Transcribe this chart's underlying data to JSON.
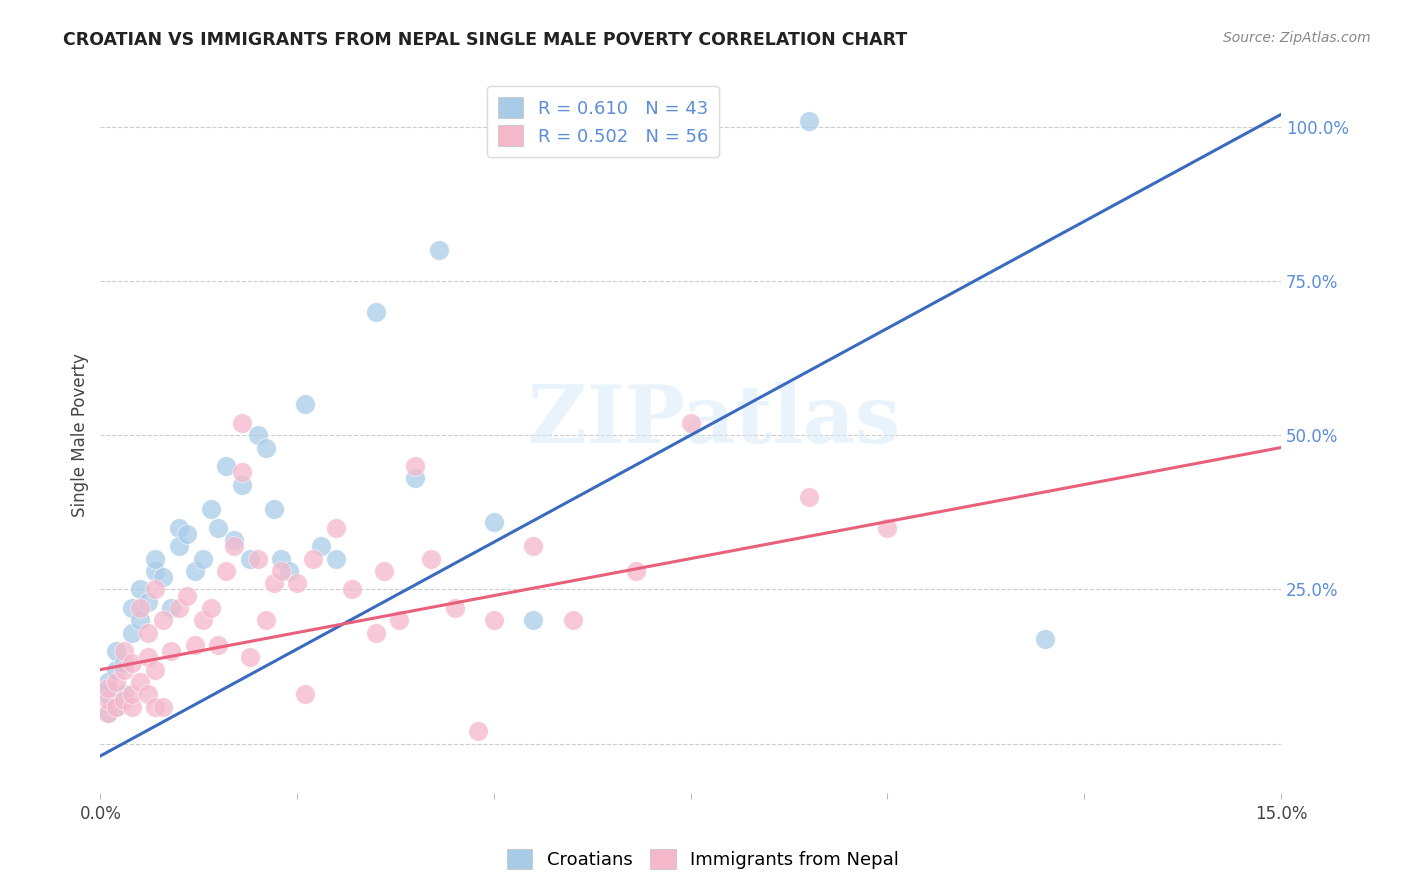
{
  "title": "CROATIAN VS IMMIGRANTS FROM NEPAL SINGLE MALE POVERTY CORRELATION CHART",
  "source": "Source: ZipAtlas.com",
  "ylabel": "Single Male Poverty",
  "legend_r1": "R = 0.610",
  "legend_n1": "N = 43",
  "legend_r2": "R = 0.502",
  "legend_n2": "N = 56",
  "legend_label1": "Croatians",
  "legend_label2": "Immigrants from Nepal",
  "watermark": "ZIPatlas",
  "color_blue": "#a8cce8",
  "color_pink": "#f5b8cb",
  "line_color_blue": "#3a6bbf",
  "line_color_pink": "#e8607a",
  "label_color_blue": "#5b8dd9",
  "xmin": 0.0,
  "xmax": 0.15,
  "ymin": -0.08,
  "ymax": 1.08,
  "blue_line_x0": 0.0,
  "blue_line_y0": -0.02,
  "blue_line_x1": 0.15,
  "blue_line_y1": 1.02,
  "pink_line_x0": 0.0,
  "pink_line_y0": 0.12,
  "pink_line_x1": 0.15,
  "pink_line_y1": 0.48,
  "blue_x": [
    0.001,
    0.001,
    0.001,
    0.002,
    0.002,
    0.002,
    0.003,
    0.003,
    0.004,
    0.004,
    0.005,
    0.005,
    0.006,
    0.007,
    0.007,
    0.008,
    0.009,
    0.01,
    0.01,
    0.011,
    0.012,
    0.013,
    0.014,
    0.015,
    0.016,
    0.017,
    0.018,
    0.019,
    0.02,
    0.021,
    0.022,
    0.023,
    0.024,
    0.026,
    0.028,
    0.03,
    0.035,
    0.04,
    0.043,
    0.05,
    0.055,
    0.09,
    0.12
  ],
  "blue_y": [
    0.05,
    0.08,
    0.1,
    0.06,
    0.12,
    0.15,
    0.08,
    0.13,
    0.18,
    0.22,
    0.2,
    0.25,
    0.23,
    0.28,
    0.3,
    0.27,
    0.22,
    0.35,
    0.32,
    0.34,
    0.28,
    0.3,
    0.38,
    0.35,
    0.45,
    0.33,
    0.42,
    0.3,
    0.5,
    0.48,
    0.38,
    0.3,
    0.28,
    0.55,
    0.32,
    0.3,
    0.7,
    0.43,
    0.8,
    0.36,
    0.2,
    1.01,
    0.17
  ],
  "pink_x": [
    0.001,
    0.001,
    0.001,
    0.002,
    0.002,
    0.003,
    0.003,
    0.003,
    0.004,
    0.004,
    0.004,
    0.005,
    0.005,
    0.006,
    0.006,
    0.006,
    0.007,
    0.007,
    0.007,
    0.008,
    0.008,
    0.009,
    0.01,
    0.011,
    0.012,
    0.013,
    0.014,
    0.015,
    0.016,
    0.017,
    0.018,
    0.018,
    0.019,
    0.02,
    0.021,
    0.022,
    0.023,
    0.025,
    0.026,
    0.027,
    0.03,
    0.032,
    0.035,
    0.036,
    0.038,
    0.04,
    0.042,
    0.045,
    0.048,
    0.05,
    0.055,
    0.06,
    0.068,
    0.075,
    0.09,
    0.1
  ],
  "pink_y": [
    0.05,
    0.07,
    0.09,
    0.06,
    0.1,
    0.07,
    0.12,
    0.15,
    0.06,
    0.08,
    0.13,
    0.1,
    0.22,
    0.08,
    0.14,
    0.18,
    0.06,
    0.12,
    0.25,
    0.06,
    0.2,
    0.15,
    0.22,
    0.24,
    0.16,
    0.2,
    0.22,
    0.16,
    0.28,
    0.32,
    0.44,
    0.52,
    0.14,
    0.3,
    0.2,
    0.26,
    0.28,
    0.26,
    0.08,
    0.3,
    0.35,
    0.25,
    0.18,
    0.28,
    0.2,
    0.45,
    0.3,
    0.22,
    0.02,
    0.2,
    0.32,
    0.2,
    0.28,
    0.52,
    0.4,
    0.35
  ]
}
